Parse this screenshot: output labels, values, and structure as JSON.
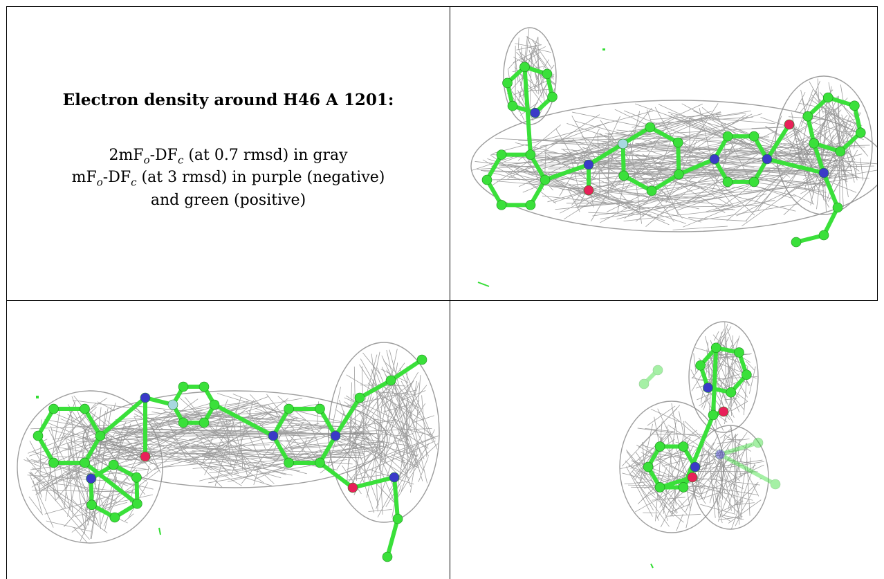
{
  "caption": {
    "title": "Electron density around H46 A 1201:",
    "line1": {
      "prefix": "2mF",
      "sub1": "o",
      "middle": "-DF",
      "sub2": "c",
      "suffix": " (at 0.7 rmsd) in gray"
    },
    "line2": {
      "prefix": "mF",
      "sub1": "o",
      "middle": "-DF",
      "sub2": "c",
      "suffix": " (at 3 rmsd) in purple (negative)"
    },
    "line3": "and green (positive)"
  },
  "colors": {
    "mesh": "#8c8c8c",
    "carbon": "#3ae03a",
    "nitrogen": "#3a3ac8",
    "oxygen": "#e8205a",
    "fluorine": "#a8d8e0",
    "positive": "#33dd33"
  },
  "panels": [
    {
      "name": "view-top-right"
    },
    {
      "name": "view-bottom-left"
    },
    {
      "name": "view-bottom-right"
    }
  ]
}
